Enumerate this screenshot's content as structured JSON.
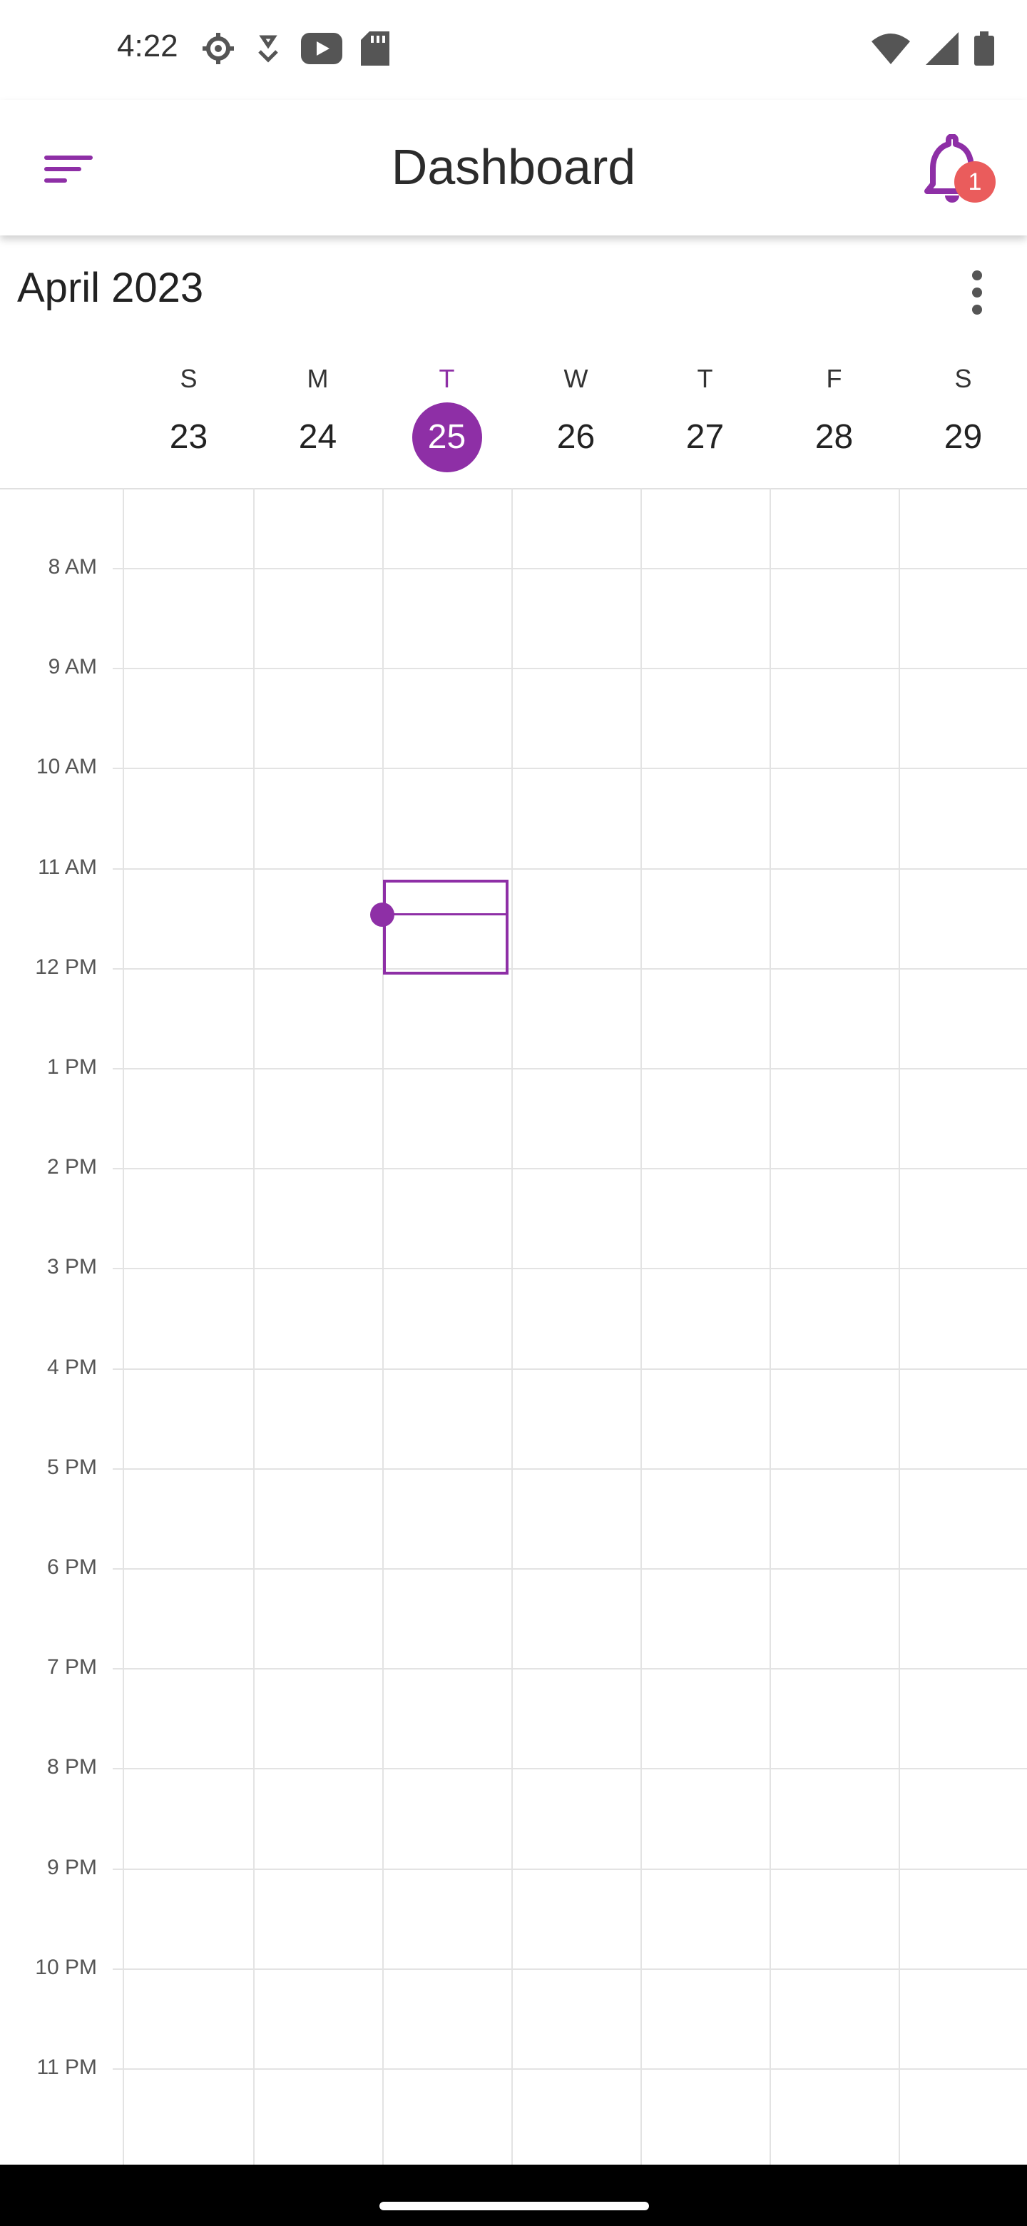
{
  "status_bar": {
    "time": "4:22",
    "left_icons": [
      "settings-gear-icon",
      "usb-debug-icon",
      "youtube-icon",
      "sd-card-icon"
    ],
    "right_icons": [
      "wifi-icon",
      "cell-signal-icon",
      "battery-icon"
    ]
  },
  "app_bar": {
    "title": "Dashboard",
    "notification_count": "1",
    "accent_color": "#8e2fa6",
    "badge_color": "#ea5c5c"
  },
  "calendar": {
    "month_title": "April 2023",
    "days": [
      {
        "letter": "S",
        "number": "23",
        "today": false
      },
      {
        "letter": "M",
        "number": "24",
        "today": false
      },
      {
        "letter": "T",
        "number": "25",
        "today": true
      },
      {
        "letter": "W",
        "number": "26",
        "today": false
      },
      {
        "letter": "T",
        "number": "27",
        "today": false
      },
      {
        "letter": "F",
        "number": "28",
        "today": false
      },
      {
        "letter": "S",
        "number": "29",
        "today": false
      }
    ],
    "hours": [
      "8 AM",
      "9 AM",
      "10 AM",
      "11 AM",
      "12 PM",
      "1 PM",
      "2 PM",
      "3 PM",
      "4 PM",
      "5 PM",
      "6 PM",
      "7 PM",
      "8 PM",
      "9 PM",
      "10 PM",
      "11 PM"
    ]
  }
}
